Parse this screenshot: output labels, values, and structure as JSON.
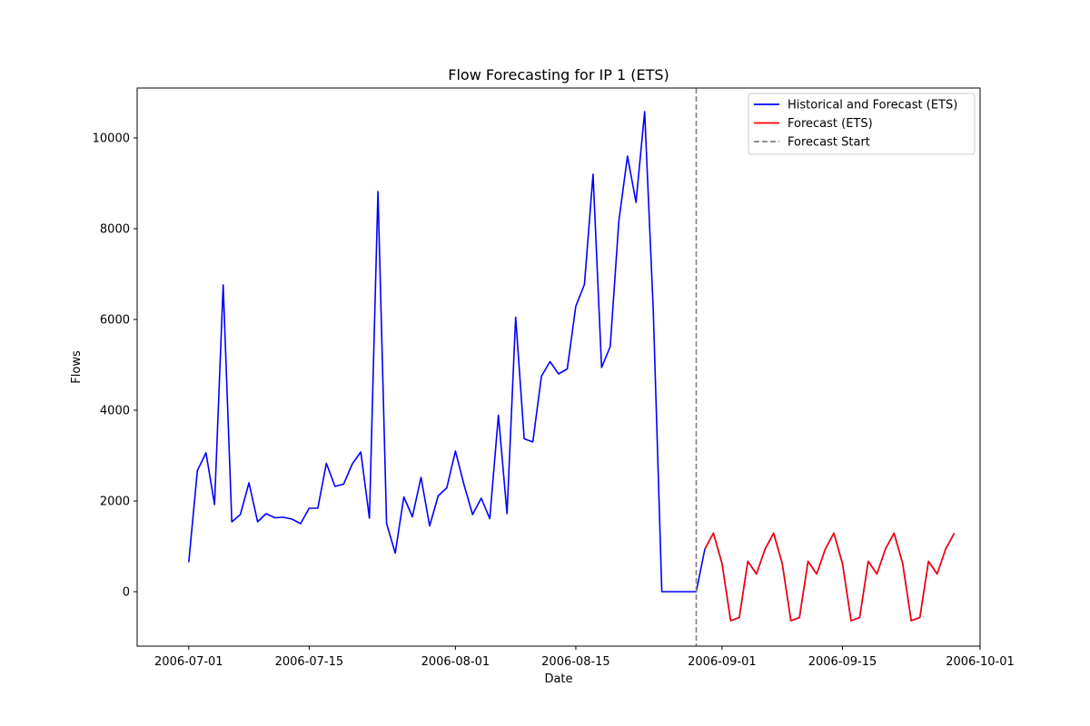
{
  "chart_data": {
    "type": "line",
    "title": "Flow Forecasting for IP 1 (ETS)",
    "xlabel": "Date",
    "ylabel": "Flows",
    "xlim": [
      "2006-06-25",
      "2006-10-01"
    ],
    "ylim": [
      -1200,
      11100
    ],
    "x_ticks": [
      "2006-07-01",
      "2006-07-15",
      "2006-08-01",
      "2006-08-15",
      "2006-09-01",
      "2006-09-15",
      "2006-10-01"
    ],
    "y_ticks": [
      0,
      2000,
      4000,
      6000,
      8000,
      10000
    ],
    "grid": false,
    "legend_position": "upper-right",
    "forecast_start": "2006-08-29",
    "series": [
      {
        "name": "Historical and Forecast (ETS)",
        "color": "#0000ff",
        "points": [
          [
            "2006-07-01",
            650
          ],
          [
            "2006-07-02",
            2670
          ],
          [
            "2006-07-03",
            3060
          ],
          [
            "2006-07-04",
            1920
          ],
          [
            "2006-07-05",
            6760
          ],
          [
            "2006-07-06",
            1540
          ],
          [
            "2006-07-07",
            1700
          ],
          [
            "2006-07-08",
            2400
          ],
          [
            "2006-07-09",
            1540
          ],
          [
            "2006-07-10",
            1720
          ],
          [
            "2006-07-11",
            1630
          ],
          [
            "2006-07-12",
            1640
          ],
          [
            "2006-07-13",
            1600
          ],
          [
            "2006-07-14",
            1500
          ],
          [
            "2006-07-15",
            1840
          ],
          [
            "2006-07-16",
            1840
          ],
          [
            "2006-07-17",
            2830
          ],
          [
            "2006-07-18",
            2320
          ],
          [
            "2006-07-19",
            2370
          ],
          [
            "2006-07-20",
            2810
          ],
          [
            "2006-07-21",
            3080
          ],
          [
            "2006-07-22",
            1620
          ],
          [
            "2006-07-23",
            8820
          ],
          [
            "2006-07-24",
            1500
          ],
          [
            "2006-07-25",
            850
          ],
          [
            "2006-07-26",
            2090
          ],
          [
            "2006-07-27",
            1650
          ],
          [
            "2006-07-28",
            2520
          ],
          [
            "2006-07-29",
            1450
          ],
          [
            "2006-07-30",
            2110
          ],
          [
            "2006-07-31",
            2290
          ],
          [
            "2006-08-01",
            3100
          ],
          [
            "2006-08-02",
            2360
          ],
          [
            "2006-08-03",
            1700
          ],
          [
            "2006-08-04",
            2060
          ],
          [
            "2006-08-05",
            1610
          ],
          [
            "2006-08-06",
            3890
          ],
          [
            "2006-08-07",
            1720
          ],
          [
            "2006-08-08",
            6050
          ],
          [
            "2006-08-09",
            3370
          ],
          [
            "2006-08-10",
            3300
          ],
          [
            "2006-08-11",
            4750
          ],
          [
            "2006-08-12",
            5070
          ],
          [
            "2006-08-13",
            4800
          ],
          [
            "2006-08-14",
            4910
          ],
          [
            "2006-08-15",
            6290
          ],
          [
            "2006-08-16",
            6770
          ],
          [
            "2006-08-17",
            9200
          ],
          [
            "2006-08-18",
            4940
          ],
          [
            "2006-08-19",
            5400
          ],
          [
            "2006-08-20",
            8170
          ],
          [
            "2006-08-21",
            9600
          ],
          [
            "2006-08-22",
            8580
          ],
          [
            "2006-08-23",
            10580
          ],
          [
            "2006-08-24",
            6200
          ],
          [
            "2006-08-25",
            0
          ],
          [
            "2006-08-26",
            0
          ],
          [
            "2006-08-27",
            0
          ],
          [
            "2006-08-28",
            0
          ],
          [
            "2006-08-29",
            0
          ],
          [
            "2006-08-30",
            940
          ],
          [
            "2006-08-31",
            1290
          ],
          [
            "2006-09-01",
            620
          ],
          [
            "2006-09-02",
            -640
          ],
          [
            "2006-09-03",
            -570
          ],
          [
            "2006-09-04",
            670
          ],
          [
            "2006-09-05",
            390
          ],
          [
            "2006-09-06",
            940
          ],
          [
            "2006-09-07",
            1290
          ],
          [
            "2006-09-08",
            620
          ],
          [
            "2006-09-09",
            -640
          ],
          [
            "2006-09-10",
            -570
          ],
          [
            "2006-09-11",
            670
          ],
          [
            "2006-09-12",
            390
          ],
          [
            "2006-09-13",
            940
          ],
          [
            "2006-09-14",
            1290
          ],
          [
            "2006-09-15",
            620
          ],
          [
            "2006-09-16",
            -640
          ],
          [
            "2006-09-17",
            -570
          ],
          [
            "2006-09-18",
            670
          ],
          [
            "2006-09-19",
            390
          ],
          [
            "2006-09-20",
            940
          ],
          [
            "2006-09-21",
            1290
          ],
          [
            "2006-09-22",
            620
          ],
          [
            "2006-09-23",
            -640
          ],
          [
            "2006-09-24",
            -570
          ],
          [
            "2006-09-25",
            670
          ],
          [
            "2006-09-26",
            390
          ],
          [
            "2006-09-27",
            940
          ],
          [
            "2006-09-28",
            1290
          ]
        ]
      },
      {
        "name": "Forecast (ETS)",
        "color": "#ff0000",
        "points": [
          [
            "2006-08-30",
            940
          ],
          [
            "2006-08-31",
            1290
          ],
          [
            "2006-09-01",
            620
          ],
          [
            "2006-09-02",
            -640
          ],
          [
            "2006-09-03",
            -570
          ],
          [
            "2006-09-04",
            670
          ],
          [
            "2006-09-05",
            390
          ],
          [
            "2006-09-06",
            940
          ],
          [
            "2006-09-07",
            1290
          ],
          [
            "2006-09-08",
            620
          ],
          [
            "2006-09-09",
            -640
          ],
          [
            "2006-09-10",
            -570
          ],
          [
            "2006-09-11",
            670
          ],
          [
            "2006-09-12",
            390
          ],
          [
            "2006-09-13",
            940
          ],
          [
            "2006-09-14",
            1290
          ],
          [
            "2006-09-15",
            620
          ],
          [
            "2006-09-16",
            -640
          ],
          [
            "2006-09-17",
            -570
          ],
          [
            "2006-09-18",
            670
          ],
          [
            "2006-09-19",
            390
          ],
          [
            "2006-09-20",
            940
          ],
          [
            "2006-09-21",
            1290
          ],
          [
            "2006-09-22",
            620
          ],
          [
            "2006-09-23",
            -640
          ],
          [
            "2006-09-24",
            -570
          ],
          [
            "2006-09-25",
            670
          ],
          [
            "2006-09-26",
            390
          ],
          [
            "2006-09-27",
            940
          ],
          [
            "2006-09-28",
            1290
          ]
        ]
      }
    ],
    "vlines": [
      {
        "name": "Forecast Start",
        "x": "2006-08-29",
        "color": "#808080",
        "style": "dashed"
      }
    ]
  }
}
